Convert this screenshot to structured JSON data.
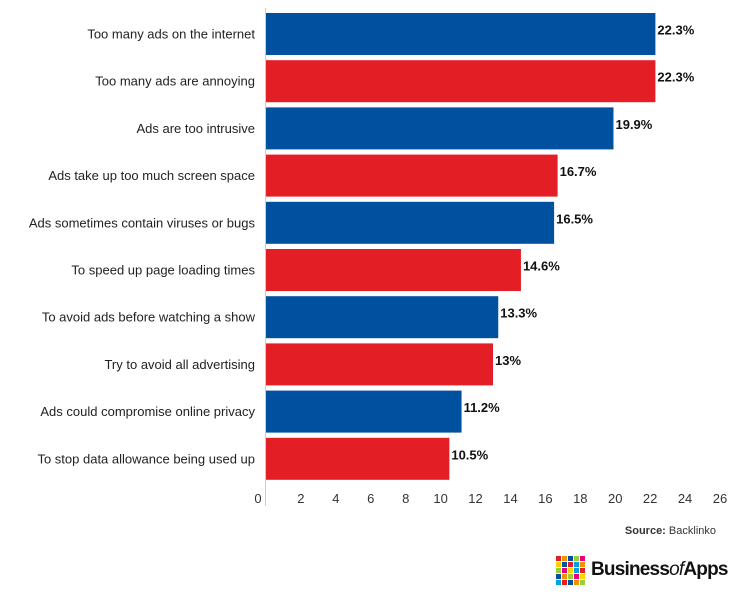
{
  "chart_data": {
    "type": "bar",
    "orientation": "horizontal",
    "categories": [
      "Too many ads on the internet",
      "Too many ads are annoying",
      "Ads are too intrusive",
      "Ads take up too much screen space",
      "Ads sometimes contain viruses or bugs",
      "To speed up page loading times",
      "To avoid ads before watching a show",
      "Try to avoid all advertising",
      "Ads could compromise online privacy",
      "To stop data allowance being used up"
    ],
    "values": [
      22.3,
      22.3,
      19.9,
      16.7,
      16.5,
      14.6,
      13.3,
      13,
      11.2,
      10.5
    ],
    "value_labels": [
      "22.3%",
      "22.3%",
      "19.9%",
      "16.7%",
      "16.5%",
      "14.6%",
      "13.3%",
      "13%",
      "11.2%",
      "10.5%"
    ],
    "bar_colors": [
      "#0050a0",
      "#e31e24",
      "#0050a0",
      "#e31e24",
      "#0050a0",
      "#e31e24",
      "#0050a0",
      "#e31e24",
      "#0050a0",
      "#e31e24"
    ],
    "xlim": [
      0,
      26
    ],
    "xticks": [
      "0",
      "2",
      "4",
      "6",
      "8",
      "10",
      "12",
      "14",
      "16",
      "18",
      "20",
      "22",
      "24",
      "26"
    ],
    "grid": false
  },
  "source": {
    "label": "Source:",
    "name": "Backlinko"
  },
  "logo": {
    "main": "Business",
    "of": "of",
    "apps": "Apps"
  },
  "colors": {
    "blue": "#0050a0",
    "red": "#e31e24",
    "axis": "#cccccc"
  },
  "logo_colors": [
    "#e31e24",
    "#f39200",
    "#0050a0",
    "#9ccb3b",
    "#e6007e",
    "#ffd400",
    "#0050a0",
    "#e31e24",
    "#00a3e0",
    "#f39200",
    "#9ccb3b",
    "#e6007e",
    "#ffd400",
    "#00a3e0",
    "#e31e24",
    "#0050a0",
    "#f39200",
    "#9ccb3b",
    "#e6007e",
    "#ffd400",
    "#00a3e0",
    "#e31e24",
    "#0050a0",
    "#f39200",
    "#9ccb3b"
  ]
}
